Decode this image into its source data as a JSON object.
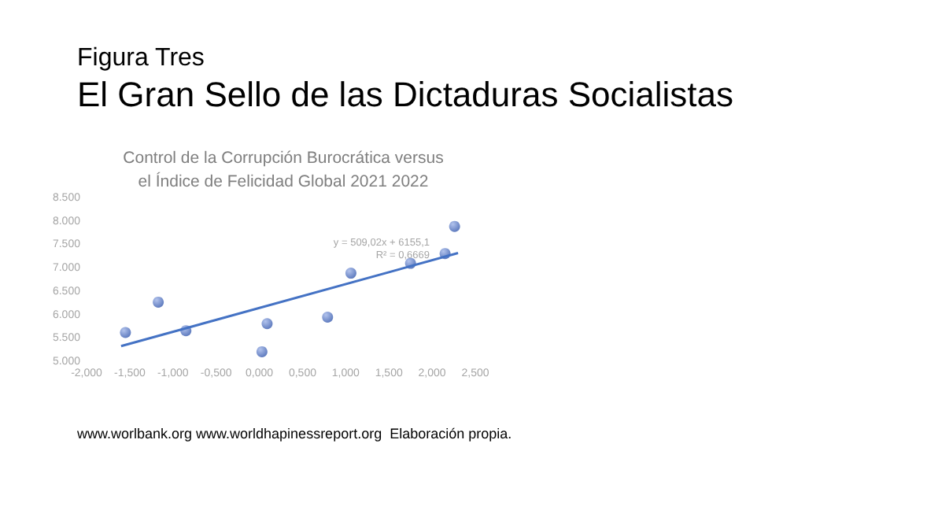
{
  "chart_data": {
    "type": "scatter",
    "title": "El Gran Sello de las Dictaduras Socialistas",
    "subtitle": "Control de la Corrupción Burocrática versus\nel Índice de Felicidad Global 2021 2022",
    "annotations": [
      "Figura Tres",
      "y = 509,02x + 6155,1",
      "R² = 0,6669",
      "www.worlbank.org www.worldhapinessreport.org  Elaboración propia."
    ],
    "series": [
      {
        "color": "#3a5db0",
        "x": [
          -1.55,
          -1.17,
          -0.85,
          0.03,
          0.09,
          0.79,
          1.06,
          1.75,
          2.15,
          2.26
        ],
        "values": [
          5630,
          6280,
          5670,
          5220,
          5820,
          5960,
          6900,
          7110,
          7320,
          7900
        ]
      },
      {
        "type": "line",
        "marker": "none",
        "color": "#4472c4",
        "x": [
          -1.6,
          2.3
        ],
        "values": [
          5340,
          7330
        ]
      }
    ],
    "marker": "circle",
    "grid": false,
    "xlim": [
      -2,
      2.5
    ],
    "xticks": [
      {
        "value": -2,
        "label": "-2,000"
      },
      {
        "value": -1.5,
        "label": "-1,500"
      },
      {
        "value": -1,
        "label": "-1,000"
      },
      {
        "value": -0.5,
        "label": "-0,500"
      },
      {
        "value": 0,
        "label": "0,000"
      },
      {
        "value": 0.5,
        "label": "0,500"
      },
      {
        "value": 1,
        "label": "1,000"
      },
      {
        "value": 1.5,
        "label": "1,500"
      },
      {
        "value": 2,
        "label": "2,000"
      },
      {
        "value": 2.5,
        "label": "2,500"
      }
    ],
    "ylim": [
      5000,
      8500
    ],
    "yticks": [
      {
        "value": 5000,
        "label": "5.000"
      },
      {
        "value": 5500,
        "label": "5.500"
      },
      {
        "value": 6000,
        "label": "6.000"
      },
      {
        "value": 6500,
        "label": "6.500"
      },
      {
        "value": 7000,
        "label": "7.000"
      },
      {
        "value": 7500,
        "label": "7.500"
      },
      {
        "value": 8000,
        "label": "8.000"
      },
      {
        "value": 8500,
        "label": "8.500"
      }
    ]
  }
}
